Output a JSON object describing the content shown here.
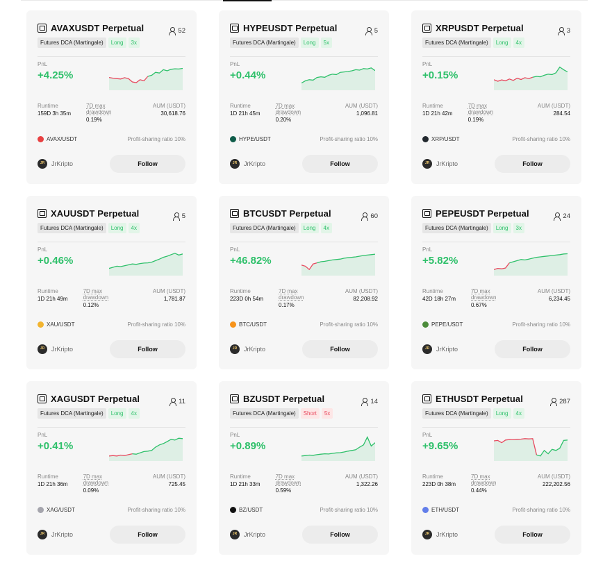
{
  "labels": {
    "pnl": "PnL",
    "runtime": "Runtime",
    "drawdown_line1": "7D max",
    "drawdown_line2": "drawdown",
    "aum": "AUM (USDT)",
    "ratio": "Profit-sharing ratio 10%",
    "follow": "Follow"
  },
  "cards": [
    {
      "title": "AVAXUSDT Perpetual",
      "type": "Futures DCA (Martingale)",
      "side": "Long",
      "side_class": "long",
      "leverage": "3x",
      "followers": "52",
      "pnl": "+4.25%",
      "runtime": "159D 3h 35m",
      "drawdown": "0.19%",
      "aum": "30,618.76",
      "pair": "AVAX/USDT",
      "coin_color": "#e84142",
      "creator": "JrKripto",
      "chart": [
        0.45,
        0.42,
        0.4,
        0.38,
        0.44,
        0.4,
        0.25,
        0.22,
        0.35,
        0.3,
        0.5,
        0.55,
        0.68,
        0.65,
        0.8,
        0.75,
        0.82,
        0.84,
        0.83,
        0.86
      ],
      "split": 10
    },
    {
      "title": "HYPEUSDT Perpetual",
      "type": "Futures DCA (Martingale)",
      "side": "Long",
      "side_class": "long",
      "leverage": "5x",
      "followers": "5",
      "pnl": "+0.44%",
      "runtime": "1D 21h 45m",
      "drawdown": "0.20%",
      "aum": "1,096.81",
      "pair": "HYPE/USDT",
      "coin_color": "#0f5c4a",
      "creator": "JrKripto",
      "chart": [
        0.2,
        0.3,
        0.35,
        0.33,
        0.45,
        0.48,
        0.46,
        0.55,
        0.6,
        0.58,
        0.68,
        0.7,
        0.72,
        0.75,
        0.8,
        0.78,
        0.85,
        0.83,
        0.88,
        0.76
      ],
      "split": 0
    },
    {
      "title": "XRPUSDT Perpetual",
      "type": "Futures DCA (Martingale)",
      "side": "Long",
      "side_class": "long",
      "leverage": "4x",
      "followers": "3",
      "pnl": "+0.15%",
      "runtime": "1D 21h 42m",
      "drawdown": "0.19%",
      "aum": "284.54",
      "pair": "XRP/USDT",
      "coin_color": "#23292f",
      "creator": "JrKripto",
      "chart": [
        0.35,
        0.28,
        0.34,
        0.3,
        0.38,
        0.32,
        0.42,
        0.36,
        0.44,
        0.4,
        0.46,
        0.5,
        0.48,
        0.55,
        0.6,
        0.58,
        0.66,
        0.92,
        0.8,
        0.7
      ],
      "split": 10
    },
    {
      "title": "XAUUSDT Perpetual",
      "type": "Futures DCA (Martingale)",
      "side": "Long",
      "side_class": "long",
      "leverage": "4x",
      "followers": "5",
      "pnl": "+0.46%",
      "runtime": "1D 21h 49m",
      "drawdown": "0.12%",
      "aum": "1,781.87",
      "pair": "XAU/USDT",
      "coin_color": "#f2b430",
      "creator": "JrKripto",
      "chart": [
        0.2,
        0.25,
        0.3,
        0.28,
        0.32,
        0.36,
        0.4,
        0.38,
        0.42,
        0.44,
        0.45,
        0.48,
        0.55,
        0.62,
        0.7,
        0.75,
        0.82,
        0.88,
        0.8,
        0.85
      ],
      "split": 0
    },
    {
      "title": "BTCUSDT Perpetual",
      "type": "Futures DCA (Martingale)",
      "side": "Long",
      "side_class": "long",
      "leverage": "4x",
      "followers": "60",
      "pnl": "+46.82%",
      "runtime": "223D 0h 54m",
      "drawdown": "0.17%",
      "aum": "82,208.92",
      "pair": "BTC/USDT",
      "coin_color": "#f7931a",
      "creator": "JrKripto",
      "chart": [
        0.35,
        0.3,
        0.15,
        0.4,
        0.45,
        0.5,
        0.52,
        0.55,
        0.58,
        0.6,
        0.62,
        0.66,
        0.68,
        0.7,
        0.72,
        0.75,
        0.78,
        0.8,
        0.82,
        0.84
      ],
      "split": 4
    },
    {
      "title": "PEPEUSDT Perpetual",
      "type": "Futures DCA (Martingale)",
      "side": "Long",
      "side_class": "long",
      "leverage": "3x",
      "followers": "24",
      "pnl": "+5.82%",
      "runtime": "42D 18h 27m",
      "drawdown": "0.67%",
      "aum": "6,234.45",
      "pair": "PEPE/USDT",
      "coin_color": "#4c8c3b",
      "creator": "JrKripto",
      "chart": [
        0.15,
        0.2,
        0.18,
        0.22,
        0.45,
        0.5,
        0.55,
        0.6,
        0.58,
        0.62,
        0.66,
        0.7,
        0.72,
        0.74,
        0.76,
        0.78,
        0.8,
        0.82,
        0.85,
        0.86
      ],
      "split": 4
    },
    {
      "title": "XAGUSDT Perpetual",
      "type": "Futures DCA (Martingale)",
      "side": "Long",
      "side_class": "long",
      "leverage": "4x",
      "followers": "11",
      "pnl": "+0.41%",
      "runtime": "1D 21h 36m",
      "drawdown": "0.09%",
      "aum": "725.45",
      "pair": "XAG/USDT",
      "coin_color": "#a5a5ad",
      "creator": "JrKripto",
      "chart": [
        0.1,
        0.12,
        0.1,
        0.14,
        0.12,
        0.16,
        0.2,
        0.18,
        0.24,
        0.3,
        0.32,
        0.35,
        0.5,
        0.6,
        0.66,
        0.75,
        0.85,
        0.82,
        0.9,
        0.88
      ],
      "split": 6
    },
    {
      "title": "BZUSDT Perpetual",
      "type": "Futures DCA (Martingale)",
      "side": "Short",
      "side_class": "short",
      "leverage": "5x",
      "followers": "14",
      "pnl": "+0.89%",
      "runtime": "1D 21h 33m",
      "drawdown": "0.59%",
      "aum": "1,322.26",
      "pair": "BZ/USDT",
      "coin_color": "#111111",
      "creator": "JrKripto",
      "chart": [
        0.1,
        0.12,
        0.14,
        0.13,
        0.16,
        0.18,
        0.2,
        0.19,
        0.22,
        0.24,
        0.25,
        0.28,
        0.32,
        0.35,
        0.38,
        0.5,
        0.6,
        0.95,
        0.55,
        0.7
      ],
      "split": 0
    },
    {
      "title": "ETHUSDT Perpetual",
      "type": "Futures DCA (Martingale)",
      "side": "Long",
      "side_class": "long",
      "leverage": "4x",
      "followers": "287",
      "pnl": "+9.65%",
      "runtime": "223D 0h 38m",
      "drawdown": "0.44%",
      "aum": "222,202.56",
      "pair": "ETH/USDT",
      "coin_color": "#627eea",
      "creator": "JrKripto",
      "chart": [
        0.78,
        0.8,
        0.7,
        0.82,
        0.84,
        0.83,
        0.85,
        0.86,
        0.88,
        0.87,
        0.88,
        0.15,
        0.1,
        0.35,
        0.2,
        0.4,
        0.35,
        0.45,
        0.8,
        0.82
      ],
      "split": 11
    }
  ]
}
